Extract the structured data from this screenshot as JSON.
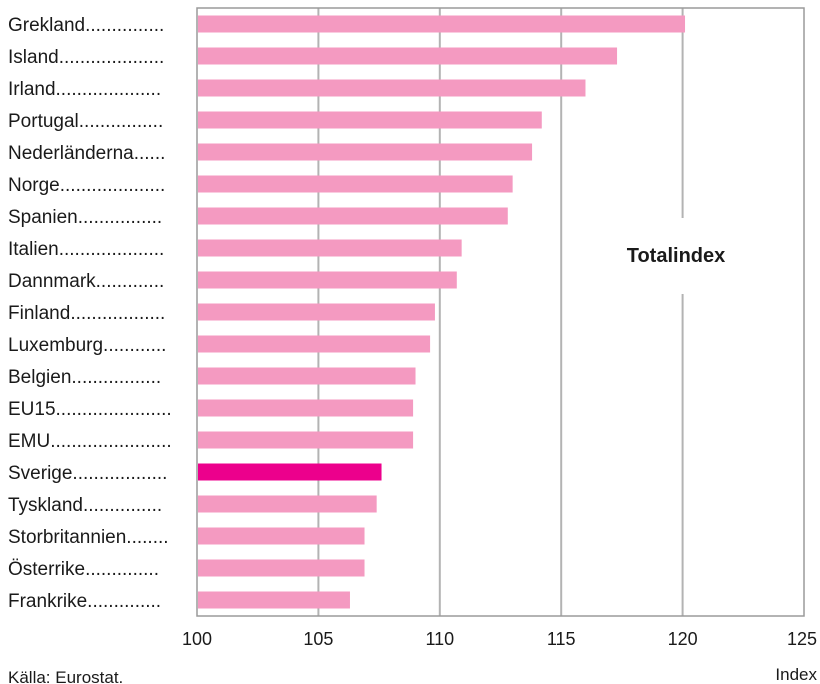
{
  "chart_data": {
    "type": "bar",
    "orientation": "horizontal",
    "panel_title": "Totalindex",
    "source_note": "Källa: Eurostat.",
    "xlabel": "Index",
    "xlim": [
      100,
      125
    ],
    "xticks": [
      100,
      105,
      110,
      115,
      120,
      125
    ],
    "grid": true,
    "bar_color": "#f49ac1",
    "highlight_color": "#ec008c",
    "highlight_category": "Sverige",
    "categories": [
      "Grekland...............",
      "Island....................",
      "Irland....................",
      "Portugal................",
      "Nederländerna......",
      "Norge....................",
      "Spanien................",
      "Italien....................",
      "Dannmark.............",
      "Finland..................",
      "Luxemburg............",
      "Belgien.................",
      "EU15......................",
      "EMU.......................",
      "Sverige..................",
      "Tyskland...............",
      "Storbritannien........",
      "Österrike..............",
      "Frankrike.............."
    ],
    "values": [
      120.1,
      117.3,
      116.0,
      114.2,
      113.8,
      113.0,
      112.8,
      110.9,
      110.7,
      109.8,
      109.6,
      109.0,
      108.9,
      108.9,
      107.6,
      107.4,
      106.9,
      106.9,
      106.3
    ]
  }
}
